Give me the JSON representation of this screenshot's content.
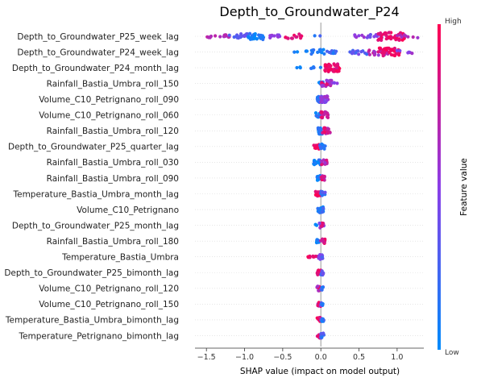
{
  "chart_data": {
    "type": "scatter",
    "subtype": "shap-beeswarm",
    "title": "Depth_to_Groundwater_P24",
    "xlabel": "SHAP value (impact on model output)",
    "ylabel": "",
    "xlim": [
      -1.65,
      1.35
    ],
    "xticks": [
      -1.5,
      -1.0,
      -0.5,
      0.0,
      0.5,
      1.0
    ],
    "xtick_labels": [
      "−1.5",
      "−1.0",
      "−0.5",
      "0.0",
      "0.5",
      "1.0"
    ],
    "colorbar": {
      "label": "Feature value",
      "high": "High",
      "low": "Low",
      "low_color": "#008bfb",
      "high_color": "#ff0052"
    },
    "grid": false,
    "zero_line": true,
    "features": [
      {
        "name": "Depth_to_Groundwater_P25_week_lag",
        "clusters": [
          {
            "x": [
              -1.55,
              -1.2
            ],
            "n": 16,
            "f": [
              0.6,
              0.75
            ],
            "spread": 2
          },
          {
            "x": [
              -1.2,
              -0.95
            ],
            "n": 16,
            "f": [
              0.25,
              0.4
            ],
            "spread": 3
          },
          {
            "x": [
              -0.95,
              -0.72
            ],
            "n": 26,
            "f": [
              0.0,
              0.2
            ],
            "spread": 4
          },
          {
            "x": [
              -0.72,
              -0.5
            ],
            "n": 10,
            "f": [
              0.45,
              0.6
            ],
            "spread": 2
          },
          {
            "x": [
              -0.55,
              -0.25
            ],
            "n": 14,
            "f": [
              0.82,
              0.95
            ],
            "spread": 3
          },
          {
            "x": [
              -0.1,
              0.0
            ],
            "n": 2,
            "f": [
              0.1,
              0.3
            ],
            "spread": 1
          },
          {
            "x": [
              0.4,
              0.6
            ],
            "n": 6,
            "f": [
              0.5,
              0.6
            ],
            "spread": 2
          },
          {
            "x": [
              0.6,
              0.8
            ],
            "n": 14,
            "f": [
              0.35,
              0.55
            ],
            "spread": 3
          },
          {
            "x": [
              0.75,
              1.1
            ],
            "n": 46,
            "f": [
              0.82,
              1.0
            ],
            "spread": 5
          },
          {
            "x": [
              1.0,
              1.3
            ],
            "n": 8,
            "f": [
              0.55,
              0.7
            ],
            "spread": 2
          }
        ]
      },
      {
        "name": "Depth_to_Groundwater_P24_week_lag",
        "clusters": [
          {
            "x": [
              -0.35,
              -0.28
            ],
            "n": 2,
            "f": [
              0.0,
              0.1
            ],
            "spread": 1
          },
          {
            "x": [
              -0.2,
              0.05
            ],
            "n": 16,
            "f": [
              0.0,
              0.2
            ],
            "spread": 3
          },
          {
            "x": [
              0.05,
              0.2
            ],
            "n": 10,
            "f": [
              0.1,
              0.3
            ],
            "spread": 2
          },
          {
            "x": [
              0.38,
              0.62
            ],
            "n": 14,
            "f": [
              0.2,
              0.45
            ],
            "spread": 3
          },
          {
            "x": [
              0.6,
              0.9
            ],
            "n": 22,
            "f": [
              0.5,
              0.8
            ],
            "spread": 4
          },
          {
            "x": [
              0.75,
              1.05
            ],
            "n": 34,
            "f": [
              0.85,
              1.0
            ],
            "spread": 5
          },
          {
            "x": [
              1.0,
              1.3
            ],
            "n": 6,
            "f": [
              0.45,
              0.65
            ],
            "spread": 2
          }
        ]
      },
      {
        "name": "Depth_to_Groundwater_P24_month_lag",
        "clusters": [
          {
            "x": [
              -0.32,
              -0.25
            ],
            "n": 3,
            "f": [
              0.0,
              0.1
            ],
            "spread": 1
          },
          {
            "x": [
              -0.15,
              0.05
            ],
            "n": 5,
            "f": [
              0.05,
              0.2
            ],
            "spread": 1
          },
          {
            "x": [
              0.05,
              0.25
            ],
            "n": 40,
            "f": [
              0.8,
              1.0
            ],
            "spread": 5
          }
        ]
      },
      {
        "name": "Rainfall_Bastia_Umbra_roll_150",
        "clusters": [
          {
            "x": [
              -0.03,
              0.03
            ],
            "n": 10,
            "f": [
              0.0,
              0.2
            ],
            "spread": 2
          },
          {
            "x": [
              0.0,
              0.15
            ],
            "n": 28,
            "f": [
              0.4,
              0.95
            ],
            "spread": 4
          },
          {
            "x": [
              0.15,
              0.22
            ],
            "n": 4,
            "f": [
              0.45,
              0.6
            ],
            "spread": 1
          }
        ]
      },
      {
        "name": "Volume_C10_Petrignano_roll_090",
        "clusters": [
          {
            "x": [
              -0.05,
              0.02
            ],
            "n": 18,
            "f": [
              0.0,
              0.3
            ],
            "spread": 4
          },
          {
            "x": [
              0.0,
              0.1
            ],
            "n": 28,
            "f": [
              0.4,
              0.7
            ],
            "spread": 4
          }
        ]
      },
      {
        "name": "Volume_C10_Petrignano_roll_060",
        "clusters": [
          {
            "x": [
              -0.08,
              0.0
            ],
            "n": 14,
            "f": [
              0.0,
              0.25
            ],
            "spread": 3
          },
          {
            "x": [
              0.0,
              0.1
            ],
            "n": 22,
            "f": [
              0.6,
              0.95
            ],
            "spread": 4
          }
        ]
      },
      {
        "name": "Rainfall_Bastia_Umbra_roll_120",
        "clusters": [
          {
            "x": [
              -0.04,
              0.02
            ],
            "n": 18,
            "f": [
              0.0,
              0.2
            ],
            "spread": 4
          },
          {
            "x": [
              0.02,
              0.12
            ],
            "n": 22,
            "f": [
              0.55,
              0.95
            ],
            "spread": 4
          }
        ]
      },
      {
        "name": "Depth_to_Groundwater_P25_quarter_lag",
        "clusters": [
          {
            "x": [
              -0.1,
              -0.01
            ],
            "n": 16,
            "f": [
              0.8,
              1.0
            ],
            "spread": 3
          },
          {
            "x": [
              -0.01,
              0.06
            ],
            "n": 18,
            "f": [
              0.05,
              0.35
            ],
            "spread": 3
          }
        ]
      },
      {
        "name": "Rainfall_Bastia_Umbra_roll_030",
        "clusters": [
          {
            "x": [
              -0.1,
              0.0
            ],
            "n": 18,
            "f": [
              0.0,
              0.2
            ],
            "spread": 3
          },
          {
            "x": [
              0.0,
              0.08
            ],
            "n": 16,
            "f": [
              0.5,
              0.95
            ],
            "spread": 3
          }
        ]
      },
      {
        "name": "Rainfall_Bastia_Umbra_roll_090",
        "clusters": [
          {
            "x": [
              -0.05,
              0.0
            ],
            "n": 14,
            "f": [
              0.0,
              0.2
            ],
            "spread": 3
          },
          {
            "x": [
              0.0,
              0.05
            ],
            "n": 14,
            "f": [
              0.5,
              0.95
            ],
            "spread": 3
          }
        ]
      },
      {
        "name": "Temperature_Bastia_Umbra_month_lag",
        "clusters": [
          {
            "x": [
              -0.07,
              0.0
            ],
            "n": 14,
            "f": [
              0.8,
              1.0
            ],
            "spread": 3
          },
          {
            "x": [
              0.0,
              0.06
            ],
            "n": 14,
            "f": [
              0.05,
              0.4
            ],
            "spread": 3
          }
        ]
      },
      {
        "name": "Volume_C10_Petrignano",
        "clusters": [
          {
            "x": [
              -0.04,
              0.04
            ],
            "n": 26,
            "f": [
              0.0,
              0.3
            ],
            "spread": 4
          }
        ]
      },
      {
        "name": "Depth_to_Groundwater_P25_month_lag",
        "clusters": [
          {
            "x": [
              -0.09,
              -0.05
            ],
            "n": 2,
            "f": [
              0.0,
              0.1
            ],
            "spread": 1
          },
          {
            "x": [
              -0.02,
              0.04
            ],
            "n": 18,
            "f": [
              0.35,
              0.95
            ],
            "spread": 3
          }
        ]
      },
      {
        "name": "Rainfall_Bastia_Umbra_roll_180",
        "clusters": [
          {
            "x": [
              -0.06,
              0.0
            ],
            "n": 8,
            "f": [
              0.0,
              0.2
            ],
            "spread": 2
          },
          {
            "x": [
              0.0,
              0.06
            ],
            "n": 14,
            "f": [
              0.7,
              1.0
            ],
            "spread": 3
          }
        ]
      },
      {
        "name": "Temperature_Bastia_Umbra",
        "clusters": [
          {
            "x": [
              -0.18,
              -0.03
            ],
            "n": 10,
            "f": [
              0.85,
              1.0
            ],
            "spread": 1
          },
          {
            "x": [
              -0.03,
              0.03
            ],
            "n": 12,
            "f": [
              0.1,
              0.5
            ],
            "spread": 3
          }
        ]
      },
      {
        "name": "Depth_to_Groundwater_P25_bimonth_lag",
        "clusters": [
          {
            "x": [
              -0.05,
              0.0
            ],
            "n": 10,
            "f": [
              0.8,
              1.0
            ],
            "spread": 3
          },
          {
            "x": [
              0.0,
              0.04
            ],
            "n": 10,
            "f": [
              0.1,
              0.4
            ],
            "spread": 3
          }
        ]
      },
      {
        "name": "Volume_C10_Petrignano_roll_120",
        "clusters": [
          {
            "x": [
              -0.05,
              0.0
            ],
            "n": 10,
            "f": [
              0.6,
              1.0
            ],
            "spread": 3
          },
          {
            "x": [
              0.0,
              0.04
            ],
            "n": 8,
            "f": [
              0.0,
              0.3
            ],
            "spread": 2
          }
        ]
      },
      {
        "name": "Volume_C10_Petrignano_roll_150",
        "clusters": [
          {
            "x": [
              -0.04,
              0.0
            ],
            "n": 10,
            "f": [
              0.6,
              1.0
            ],
            "spread": 3
          },
          {
            "x": [
              0.0,
              0.03
            ],
            "n": 8,
            "f": [
              0.0,
              0.3
            ],
            "spread": 2
          }
        ]
      },
      {
        "name": "Temperature_Bastia_Umbra_bimonth_lag",
        "clusters": [
          {
            "x": [
              -0.05,
              0.0
            ],
            "n": 10,
            "f": [
              0.8,
              1.0
            ],
            "spread": 3
          },
          {
            "x": [
              0.0,
              0.04
            ],
            "n": 8,
            "f": [
              0.05,
              0.35
            ],
            "spread": 2
          }
        ]
      },
      {
        "name": "Temperature_Petrignano_bimonth_lag",
        "clusters": [
          {
            "x": [
              -0.05,
              0.0
            ],
            "n": 10,
            "f": [
              0.8,
              1.0
            ],
            "spread": 3
          },
          {
            "x": [
              0.0,
              0.04
            ],
            "n": 10,
            "f": [
              0.05,
              0.35
            ],
            "spread": 3
          }
        ]
      }
    ]
  }
}
